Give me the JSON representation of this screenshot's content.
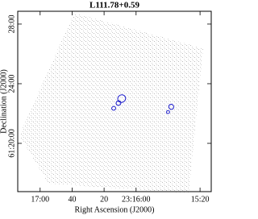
{
  "chart_data": {
    "type": "contour",
    "title": "L111.78+0.59",
    "x_label": "Right Ascension (J2000)",
    "y_label": "Declination (J2000)",
    "xlim": [
      1034,
      913
    ],
    "ylim": [
      16.76,
      28.86
    ],
    "xticks": [
      {
        "value": 1020,
        "label": "17:00"
      },
      {
        "value": 1000,
        "label": "40"
      },
      {
        "value": 980,
        "label": "20"
      },
      {
        "value": 960,
        "label": "23:16:00"
      },
      {
        "value": 920,
        "label": "15:20"
      }
    ],
    "yticks": [
      {
        "value": 28,
        "label": "28:00"
      },
      {
        "value": 24,
        "label": "24:00"
      },
      {
        "value": 20,
        "label": "61:20:00"
      }
    ],
    "color": "#1a1acc",
    "x": [
      969,
      971,
      974,
      938,
      940
    ],
    "y": [
      23.0,
      22.7,
      22.35,
      22.45,
      22.1
    ],
    "width": [
      5,
      3,
      2.5,
      3,
      2
    ],
    "height": [
      0.5,
      0.3,
      0.25,
      0.35,
      0.2
    ]
  }
}
